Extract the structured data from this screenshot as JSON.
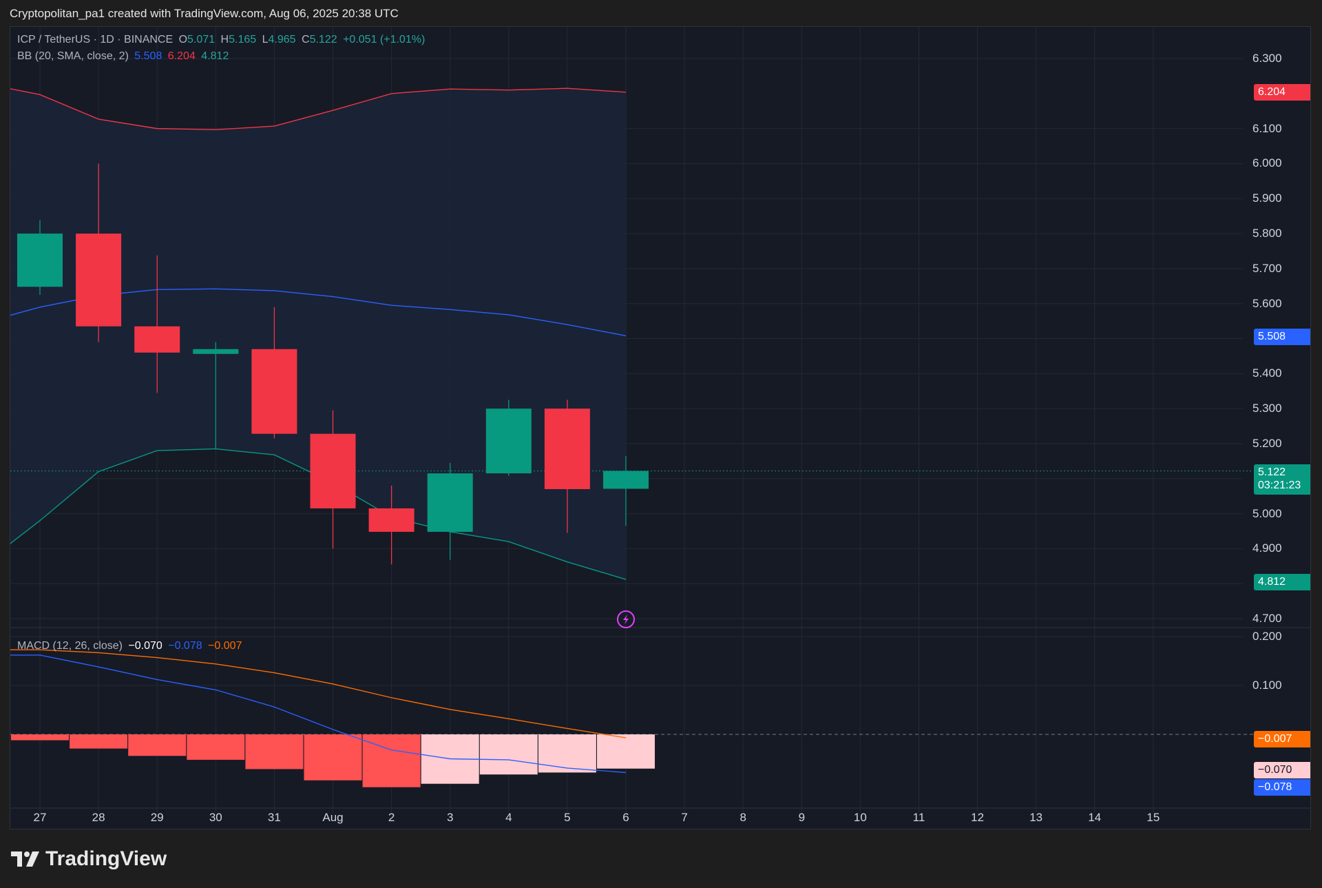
{
  "header": {
    "attribution": "Cryptopolitan_pa1 created with TradingView.com, Aug 06, 2025 20:38 UTC"
  },
  "legend": {
    "symbol": "ICP / TetherUS · 1D · BINANCE",
    "o_label": "O",
    "o_value": "5.071",
    "h_label": "H",
    "h_value": "5.165",
    "l_label": "L",
    "l_value": "4.965",
    "c_label": "C",
    "c_value": "5.122",
    "change": "+0.051 (+1.01%)",
    "bb_label": "BB (20, SMA, close, 2)",
    "bb_basis": "5.508",
    "bb_upper": "6.204",
    "bb_lower": "4.812",
    "macd_label": "MACD (12, 26, close)",
    "macd_hist": "−0.070",
    "macd_line": "−0.078",
    "macd_signal": "−0.007"
  },
  "badges": {
    "bb_upper": "6.204",
    "bb_basis": "5.508",
    "price": "5.122",
    "countdown": "03:21:23",
    "bb_lower": "4.812",
    "macd_signal": "−0.007",
    "macd_hist": "−0.070",
    "macd_line": "−0.078"
  },
  "colors": {
    "up": "#089981",
    "down": "#f23645",
    "bb_upper": "#f23645",
    "bb_basis": "#2962ff",
    "bb_lower": "#089981",
    "macd_line": "#2962ff",
    "signal_line": "#ff6d00",
    "hist_neg_growing": "#ff5252",
    "hist_neg_falling": "#ffcdd2",
    "bb_fill": "#1b2438"
  },
  "footer": {
    "brand": "TradingView"
  },
  "chart_data": [
    {
      "type": "candlestick",
      "title": "ICP / TetherUS · 1D · BINANCE",
      "x": [
        "27",
        "28",
        "29",
        "30",
        "31",
        "Aug",
        "2",
        "3",
        "4",
        "5",
        "6"
      ],
      "ohlc": [
        {
          "o": 5.648,
          "h": 5.838,
          "l": 5.625,
          "c": 5.8
        },
        {
          "o": 5.8,
          "h": 6.0,
          "l": 5.49,
          "c": 5.535
        },
        {
          "o": 5.535,
          "h": 5.738,
          "l": 5.345,
          "c": 5.46
        },
        {
          "o": 5.46,
          "h": 5.49,
          "l": 5.185,
          "c": 5.47
        },
        {
          "o": 5.47,
          "h": 5.59,
          "l": 5.215,
          "c": 5.228
        },
        {
          "o": 5.228,
          "h": 5.295,
          "l": 4.9,
          "c": 5.015
        },
        {
          "o": 5.015,
          "h": 5.08,
          "l": 4.855,
          "c": 4.948
        },
        {
          "o": 4.948,
          "h": 5.145,
          "l": 4.868,
          "c": 5.115
        },
        {
          "o": 5.115,
          "h": 5.325,
          "l": 5.108,
          "c": 5.3
        },
        {
          "o": 5.3,
          "h": 5.325,
          "l": 4.945,
          "c": 5.07
        },
        {
          "o": 5.071,
          "h": 5.165,
          "l": 4.965,
          "c": 5.122
        }
      ],
      "series": [
        {
          "name": "BB upper",
          "values": [
            6.197,
            6.127,
            6.1,
            6.097,
            6.107,
            6.152,
            6.2,
            6.213,
            6.21,
            6.215,
            6.204
          ]
        },
        {
          "name": "BB basis",
          "values": [
            5.59,
            5.623,
            5.64,
            5.642,
            5.637,
            5.62,
            5.595,
            5.583,
            5.568,
            5.54,
            5.508
          ]
        },
        {
          "name": "BB lower",
          "values": [
            4.98,
            5.12,
            5.18,
            5.185,
            5.168,
            5.088,
            4.99,
            4.948,
            4.92,
            4.862,
            4.812
          ]
        }
      ],
      "bb_start": {
        "upper": 6.215,
        "basis": 5.565,
        "lower": 4.91
      },
      "ylim": [
        4.66,
        6.37
      ],
      "yticks": [
        "6.300",
        "6.100",
        "6.000",
        "5.900",
        "5.800",
        "5.700",
        "5.600",
        "5.400",
        "5.300",
        "5.200",
        "5.000",
        "4.900",
        "4.700"
      ],
      "current_price": 5.122
    },
    {
      "type": "bar",
      "title": "MACD (12, 26, close)",
      "x": [
        "27",
        "28",
        "29",
        "30",
        "31",
        "Aug",
        "2",
        "3",
        "4",
        "5",
        "6"
      ],
      "series": [
        {
          "name": "Histogram",
          "values": [
            -0.012,
            -0.029,
            -0.044,
            -0.052,
            -0.071,
            -0.094,
            -0.108,
            -0.101,
            -0.082,
            -0.078,
            -0.07
          ]
        },
        {
          "name": "MACD",
          "values": [
            0.162,
            0.138,
            0.112,
            0.091,
            0.056,
            0.01,
            -0.032,
            -0.05,
            -0.052,
            -0.069,
            -0.078
          ]
        },
        {
          "name": "Signal",
          "values": [
            0.173,
            0.167,
            0.157,
            0.144,
            0.126,
            0.103,
            0.075,
            0.051,
            0.032,
            0.012,
            -0.007
          ]
        }
      ],
      "ylim": [
        -0.113,
        0.21
      ],
      "yticks": [
        "0.200",
        "0.100"
      ]
    }
  ],
  "x_axis": {
    "labels": [
      "27",
      "28",
      "29",
      "30",
      "31",
      "Aug",
      "2",
      "3",
      "4",
      "5",
      "6",
      "7",
      "8",
      "9",
      "10",
      "11",
      "12",
      "13",
      "14",
      "15"
    ]
  }
}
